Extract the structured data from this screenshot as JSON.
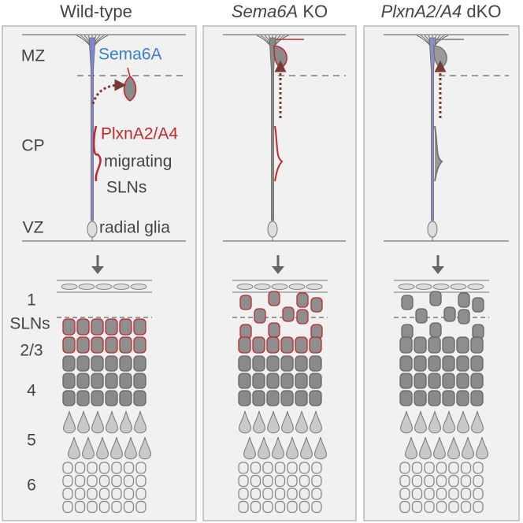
{
  "panels": [
    {
      "title": "Wild-type"
    },
    {
      "title_italic": "Sema6A",
      "title_rest": " KO"
    },
    {
      "title_italic": "PlxnA2/A4",
      "title_rest": " dKO"
    }
  ],
  "zones": [
    "MZ",
    "CP",
    "VZ"
  ],
  "annotations": {
    "receptor": "Sema6A",
    "ligand": "PlxnA2/A4",
    "migrating": "migrating",
    "migrating_cells": "SLNs",
    "glia": "radial glia"
  },
  "layers": [
    "1",
    "SLNs",
    "2/3",
    "4",
    "5",
    "6"
  ]
}
